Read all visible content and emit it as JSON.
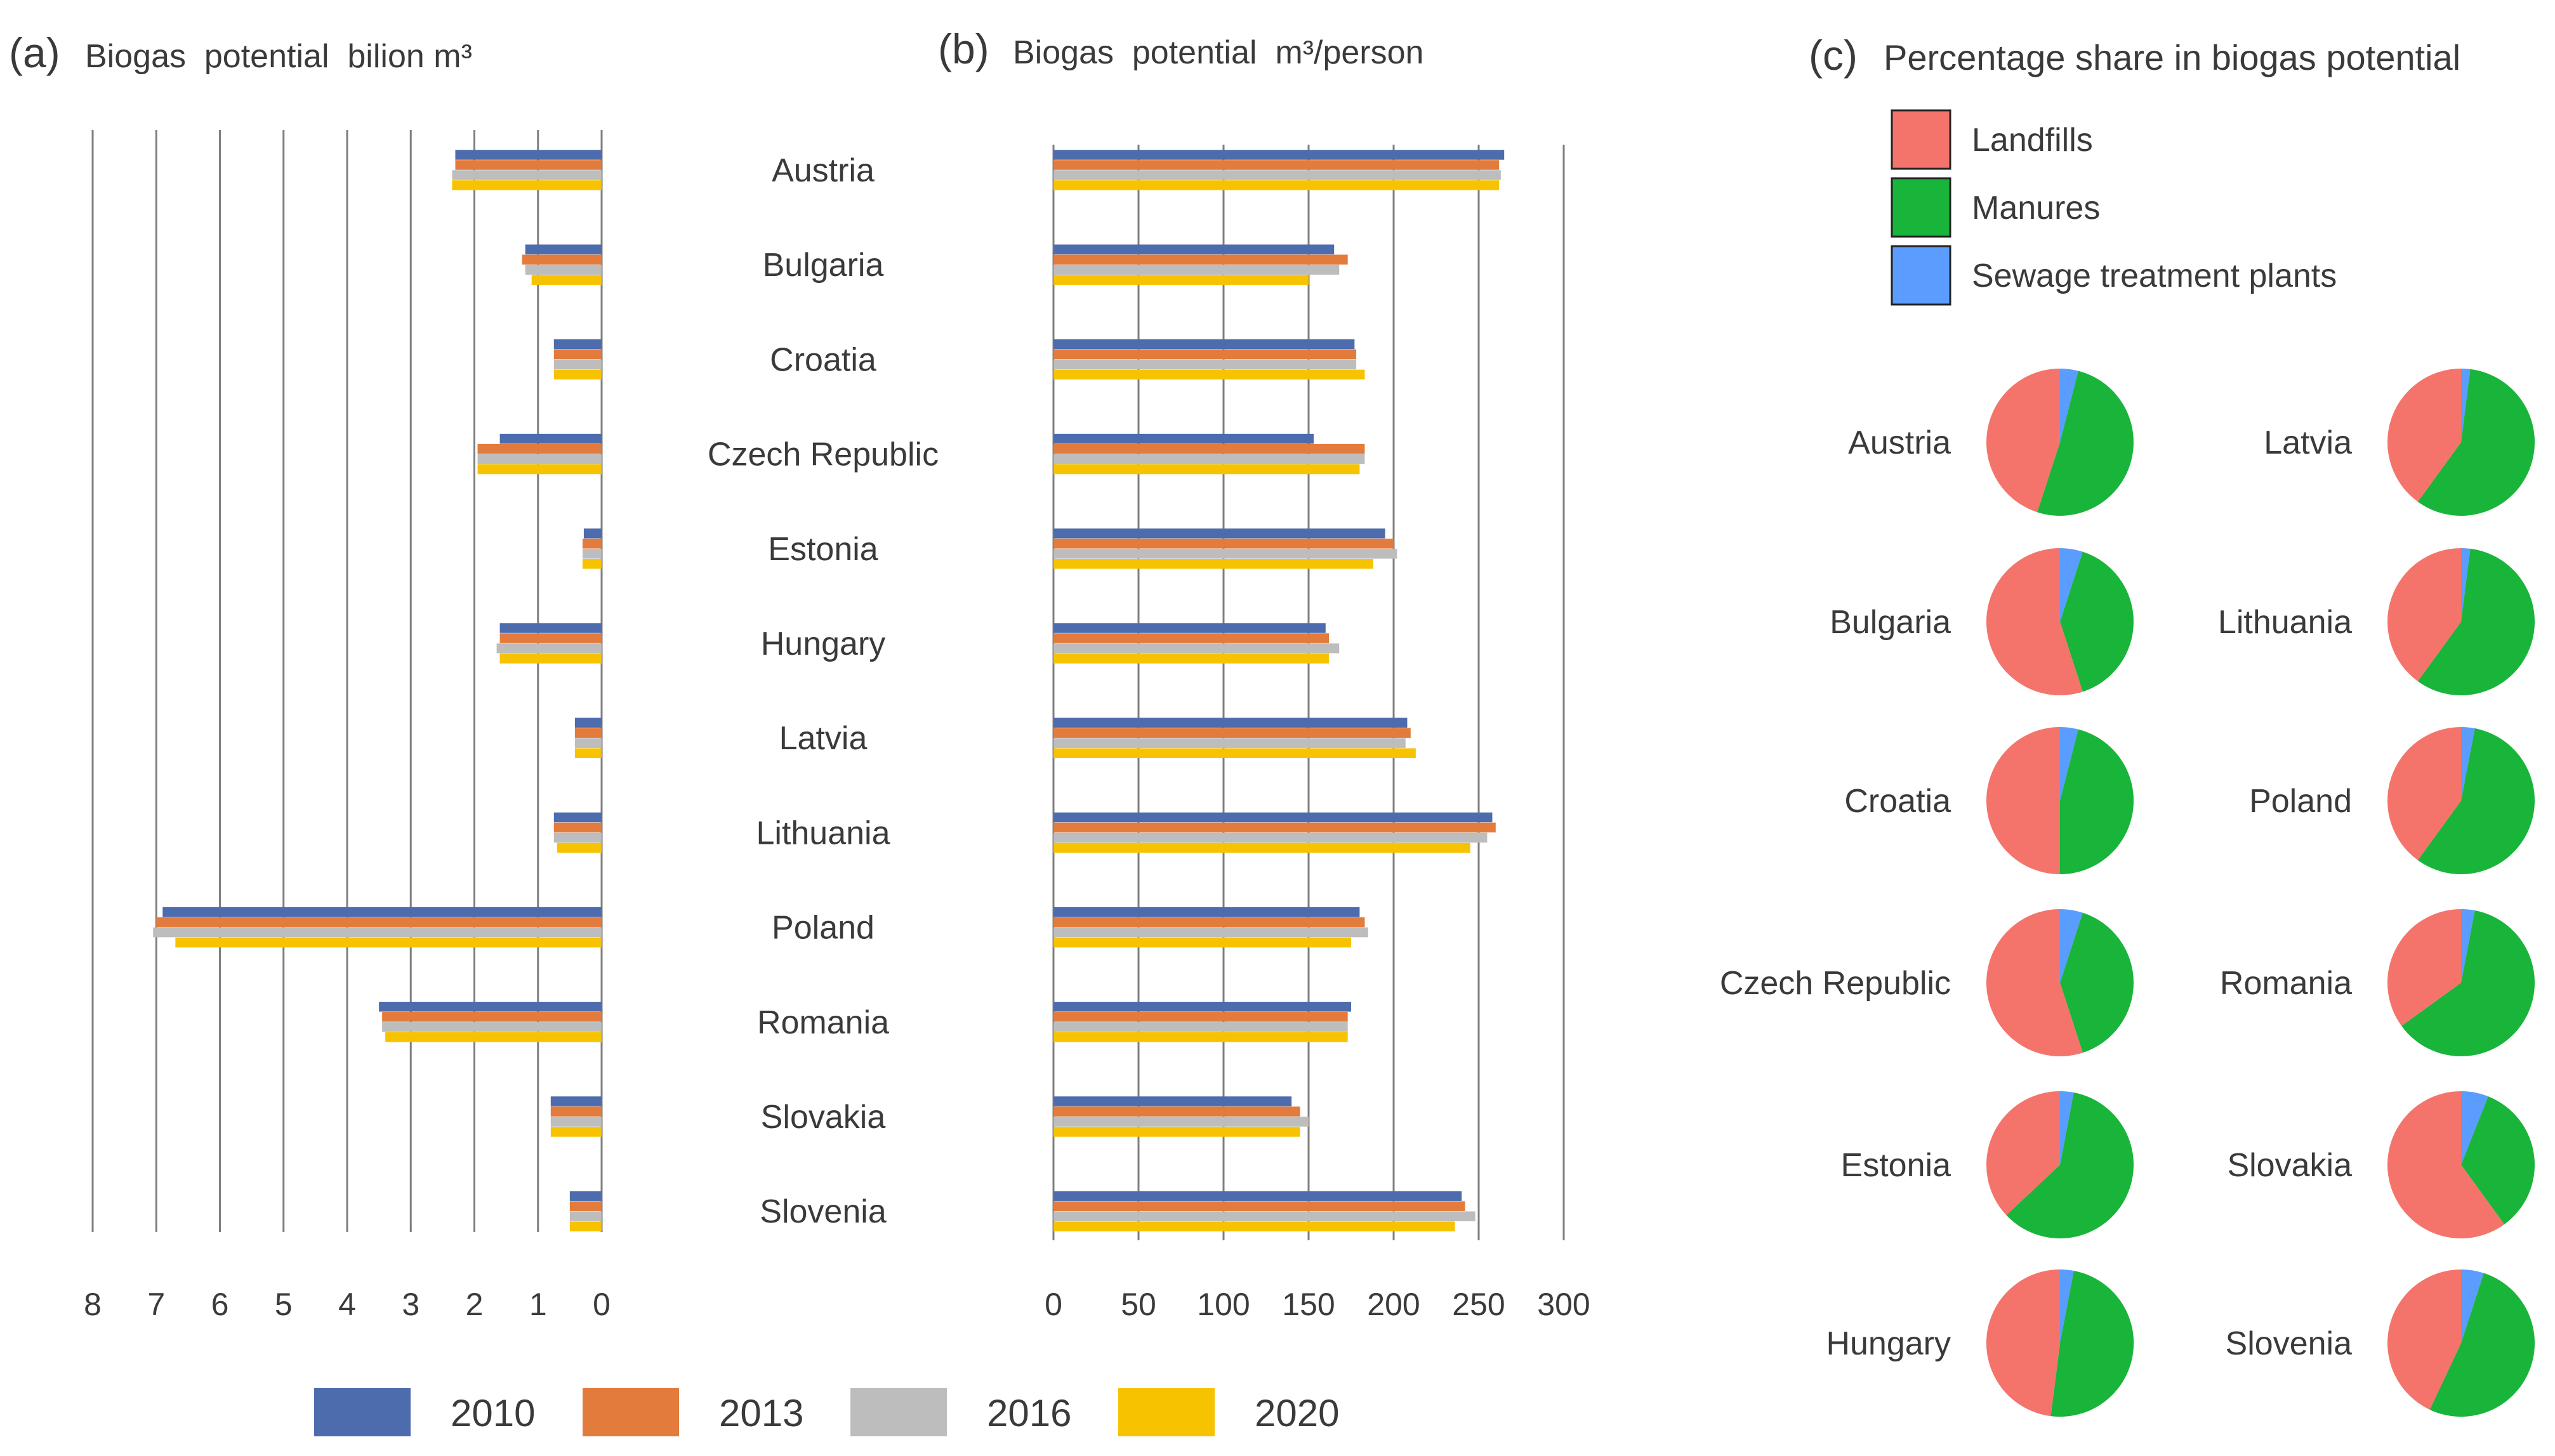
{
  "colors": {
    "2010": "#4d6cad",
    "2013": "#e37b3c",
    "2016": "#bdbdbd",
    "2020": "#f7c300",
    "Landfills": "#f4746b",
    "Manures": "#19b43a",
    "Sewage treatment plants": "#5b9cff",
    "grid": "#7f7f7f"
  },
  "chart_data": [
    {
      "id": "a",
      "type": "bar",
      "orientation": "horizontal",
      "direction": "right-to-left",
      "panel_label": "(a)",
      "title": "Biogas  potential  bilion m³",
      "categories": [
        "Austria",
        "Bulgaria",
        "Croatia",
        "Czech Republic",
        "Estonia",
        "Hungary",
        "Latvia",
        "Lithuania",
        "Poland",
        "Romania",
        "Slovakia",
        "Slovenia"
      ],
      "series": [
        {
          "name": "2010",
          "values": [
            2.3,
            1.2,
            0.75,
            1.6,
            0.28,
            1.6,
            0.42,
            0.75,
            6.9,
            3.5,
            0.8,
            0.5
          ]
        },
        {
          "name": "2013",
          "values": [
            2.3,
            1.25,
            0.75,
            1.95,
            0.3,
            1.6,
            0.42,
            0.75,
            7.0,
            3.45,
            0.8,
            0.5
          ]
        },
        {
          "name": "2016",
          "values": [
            2.35,
            1.2,
            0.75,
            1.95,
            0.3,
            1.65,
            0.42,
            0.75,
            7.05,
            3.45,
            0.8,
            0.5
          ]
        },
        {
          "name": "2020",
          "values": [
            2.35,
            1.1,
            0.75,
            1.95,
            0.3,
            1.6,
            0.42,
            0.7,
            6.7,
            3.4,
            0.8,
            0.5
          ]
        }
      ],
      "xlim": [
        8,
        0
      ],
      "xticks": [
        "8",
        "7",
        "6",
        "5",
        "4",
        "3",
        "2",
        "1",
        "0"
      ],
      "grid": "vertical"
    },
    {
      "id": "b",
      "type": "bar",
      "orientation": "horizontal",
      "panel_label": "(b)",
      "title": "Biogas  potential  m³/person",
      "categories": [
        "Austria",
        "Bulgaria",
        "Croatia",
        "Czech Republic",
        "Estonia",
        "Hungary",
        "Latvia",
        "Lithuania",
        "Poland",
        "Romania",
        "Slovakia",
        "Slovenia"
      ],
      "series": [
        {
          "name": "2010",
          "values": [
            265,
            165,
            177,
            153,
            195,
            160,
            208,
            258,
            180,
            175,
            140,
            240
          ]
        },
        {
          "name": "2013",
          "values": [
            262,
            173,
            178,
            183,
            200,
            162,
            210,
            260,
            183,
            173,
            145,
            242
          ]
        },
        {
          "name": "2016",
          "values": [
            263,
            168,
            178,
            183,
            202,
            168,
            207,
            255,
            185,
            173,
            150,
            248
          ]
        },
        {
          "name": "2020",
          "values": [
            262,
            150,
            183,
            180,
            188,
            162,
            213,
            245,
            175,
            173,
            145,
            236
          ]
        }
      ],
      "xlim": [
        0,
        300
      ],
      "xticks": [
        "0",
        "50",
        "100",
        "150",
        "200",
        "250",
        "300"
      ],
      "grid": "vertical"
    },
    {
      "id": "c",
      "type": "pie",
      "panel_label": "(c)",
      "title": "Percentage share in biogas potential",
      "legend": [
        "Landfills",
        "Manures",
        "Sewage treatment plants"
      ],
      "pies": [
        {
          "country": "Austria",
          "sewage": 4,
          "manures": 51,
          "landfills": 45
        },
        {
          "country": "Latvia",
          "sewage": 2,
          "manures": 58,
          "landfills": 40
        },
        {
          "country": "Bulgaria",
          "sewage": 5,
          "manures": 40,
          "landfills": 55
        },
        {
          "country": "Lithuania",
          "sewage": 2,
          "manures": 58,
          "landfills": 40
        },
        {
          "country": "Croatia",
          "sewage": 4,
          "manures": 46,
          "landfills": 50
        },
        {
          "country": "Poland",
          "sewage": 3,
          "manures": 57,
          "landfills": 40
        },
        {
          "country": "Czech Republic",
          "sewage": 5,
          "manures": 40,
          "landfills": 55
        },
        {
          "country": "Romania",
          "sewage": 3,
          "manures": 62,
          "landfills": 35
        },
        {
          "country": "Estonia",
          "sewage": 3,
          "manures": 60,
          "landfills": 37
        },
        {
          "country": "Slovakia",
          "sewage": 6,
          "manures": 34,
          "landfills": 60
        },
        {
          "country": "Hungary",
          "sewage": 3,
          "manures": 49,
          "landfills": 48
        },
        {
          "country": "Slovenia",
          "sewage": 5,
          "manures": 52,
          "landfills": 43
        }
      ]
    }
  ],
  "legend_years": [
    "2010",
    "2013",
    "2016",
    "2020"
  ]
}
